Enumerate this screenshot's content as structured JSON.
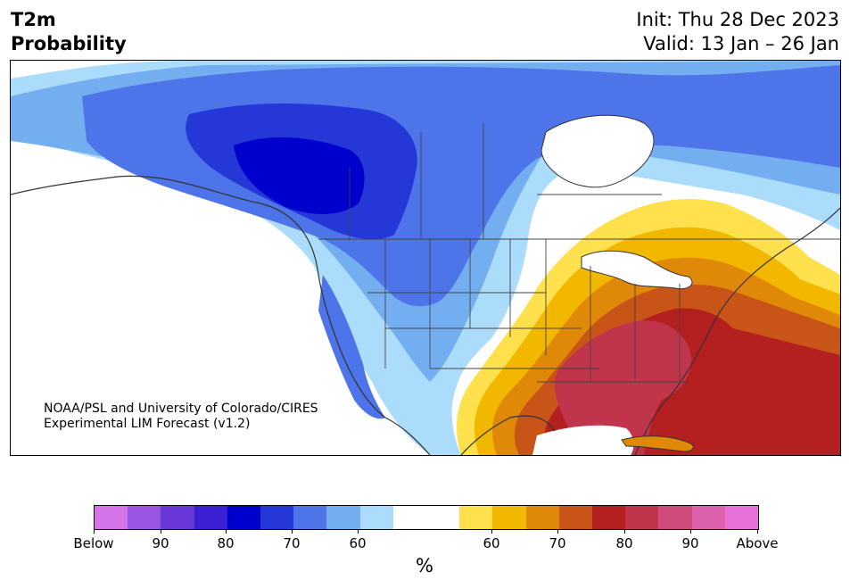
{
  "header": {
    "title_line1": "T2m",
    "title_line2": "Probability",
    "init": "Init: Thu 28 Dec 2023",
    "valid": "Valid: 13 Jan – 26 Jan"
  },
  "credit": {
    "line1": "NOAA/PSL and University of Colorado/CIRES",
    "line2": "Experimental LIM Forecast (v1.2)"
  },
  "colorbar": {
    "colors": [
      "#d473e8",
      "#9b55e0",
      "#6a38d8",
      "#3a1fd4",
      "#0000cc",
      "#2438d8",
      "#4d74e8",
      "#73aef0",
      "#acdcfb",
      "#ffffff",
      "#ffffff",
      "#ffe14d",
      "#f2b800",
      "#e08808",
      "#c85418",
      "#b42020",
      "#c0344c",
      "#d04c7c",
      "#dc60ac",
      "#e672d8"
    ],
    "labels": [
      "Below",
      "90",
      "80",
      "70",
      "60",
      "60",
      "70",
      "80",
      "90",
      "Above"
    ],
    "unit": "%"
  }
}
